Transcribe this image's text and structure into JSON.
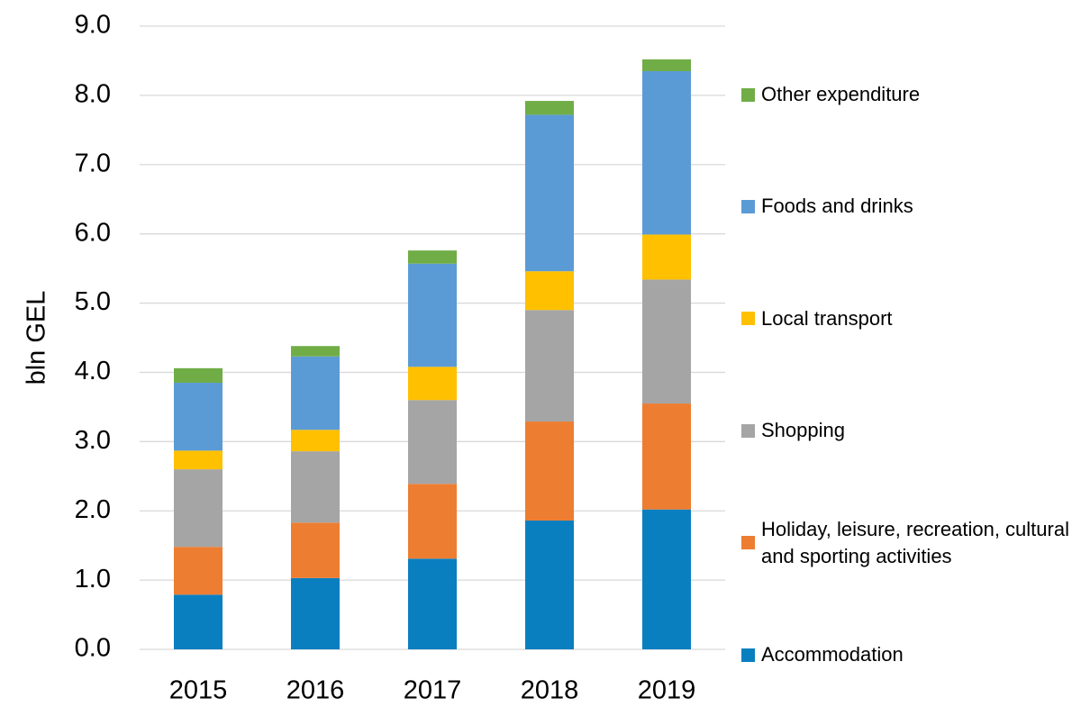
{
  "chart_data": {
    "type": "stacked_bar",
    "y_label": "bln GEL",
    "categories": [
      "2015",
      "2016",
      "2017",
      "2018",
      "2019"
    ],
    "series": [
      {
        "name": "Accommodation",
        "color": "#0a7fc0",
        "values": [
          0.79,
          1.03,
          1.31,
          1.86,
          2.02
        ]
      },
      {
        "name": "Holiday, leisure, recreation, cultural and sporting activities",
        "color": "#ed7d31",
        "values": [
          0.69,
          0.8,
          1.08,
          1.43,
          1.53
        ]
      },
      {
        "name": "Shopping",
        "color": "#a5a5a5",
        "values": [
          1.12,
          1.03,
          1.21,
          1.61,
          1.79
        ]
      },
      {
        "name": "Local transport",
        "color": "#ffc000",
        "values": [
          0.27,
          0.31,
          0.48,
          0.56,
          0.65
        ]
      },
      {
        "name": "Foods and drinks",
        "color": "#5b9bd5",
        "values": [
          0.98,
          1.06,
          1.49,
          2.26,
          2.36
        ]
      },
      {
        "name": "Other expenditure",
        "color": "#70ad47",
        "values": [
          0.21,
          0.15,
          0.19,
          0.2,
          0.17
        ]
      }
    ],
    "ylim": [
      0,
      9
    ],
    "yticks": [
      {
        "value": 0,
        "label": "0.0"
      },
      {
        "value": 1,
        "label": "1.0"
      },
      {
        "value": 2,
        "label": "2.0"
      },
      {
        "value": 3,
        "label": "3.0"
      },
      {
        "value": 4,
        "label": "4.0"
      },
      {
        "value": 5,
        "label": "5.0"
      },
      {
        "value": 6,
        "label": "6.0"
      },
      {
        "value": 7,
        "label": "7.0"
      },
      {
        "value": 8,
        "label": "8.0"
      },
      {
        "value": 9,
        "label": "9.0"
      }
    ],
    "grid": true,
    "legend": "right"
  }
}
